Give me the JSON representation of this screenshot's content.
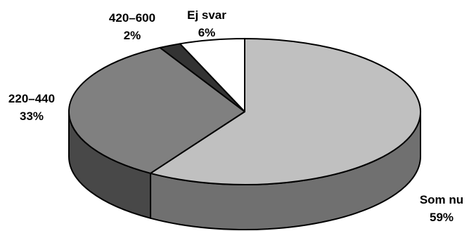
{
  "chart_data": {
    "type": "pie",
    "style": "3d",
    "start_angle_deg": 90,
    "direction": "clockwise",
    "slices": [
      {
        "label": "Som nu",
        "value": 59,
        "value_label": "59%",
        "color": "#c0c0c0"
      },
      {
        "label": "220–440",
        "value": 33,
        "value_label": "33%",
        "color": "#808080"
      },
      {
        "label": "420–600",
        "value": 2,
        "value_label": "2%",
        "color": "#333333"
      },
      {
        "label": "Ej svar",
        "value": 6,
        "value_label": "6%",
        "color": "#ffffff"
      }
    ],
    "side_colors": [
      "#707070",
      "#484848",
      "#262626",
      "#ffffff"
    ],
    "outline_color": "#000000"
  }
}
